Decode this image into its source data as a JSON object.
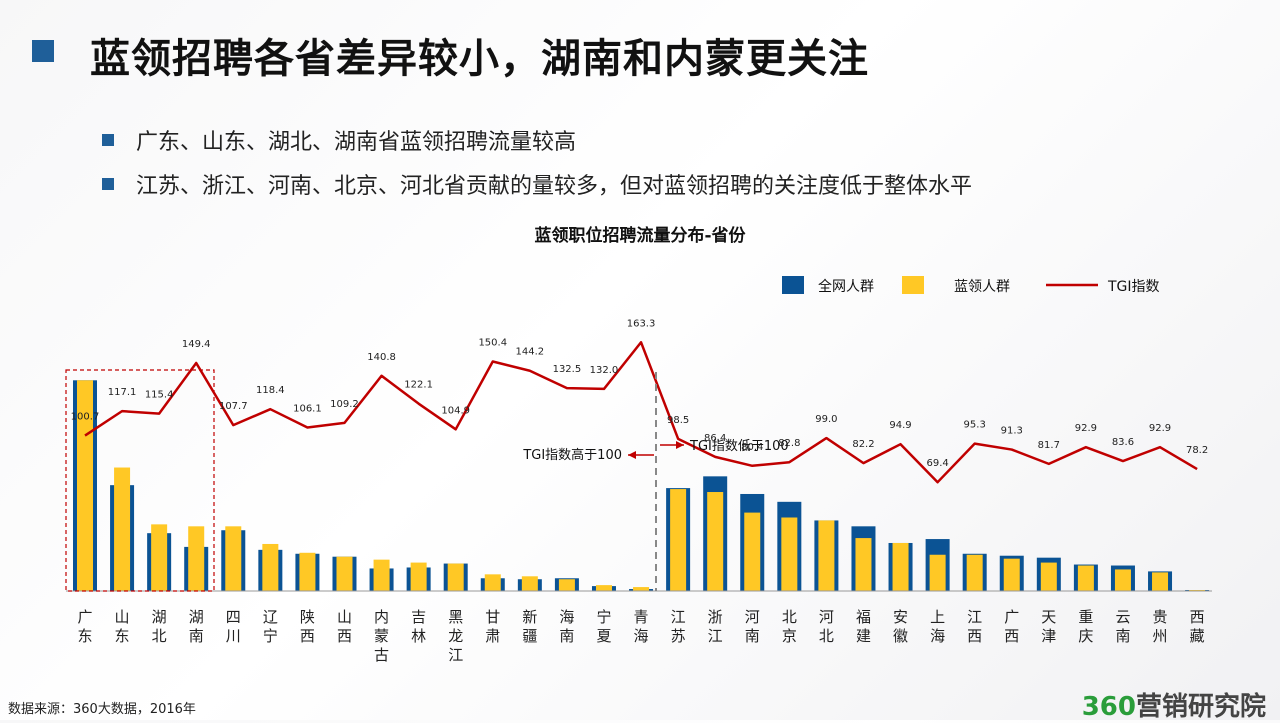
{
  "page": {
    "title": "蓝领招聘各省差异较小，湖南和内蒙更关注",
    "bullets": [
      "广东、山东、湖北、湖南省蓝领招聘流量较高",
      "江苏、浙江、河南、北京、河北省贡献的量较多，但对蓝领招聘的关注度低于整体水平"
    ],
    "source": "数据来源：360大数据，2016年",
    "brand_num": "360",
    "brand_text": "营销研究院"
  },
  "colors": {
    "blue": "#0b5394",
    "yellow": "#ffc825",
    "red": "#c00000",
    "accent": "#1f5f99"
  },
  "chart_data": {
    "type": "bar",
    "title": "蓝领职位招聘流量分布-省份",
    "categories": [
      "广东",
      "山东",
      "湖北",
      "湖南",
      "四川",
      "辽宁",
      "陕西",
      "山西",
      "内蒙古",
      "吉林",
      "黑龙江",
      "甘肃",
      "新疆",
      "海南",
      "宁夏",
      "青海",
      "江苏",
      "浙江",
      "河南",
      "北京",
      "河北",
      "福建",
      "安徽",
      "上海",
      "江西",
      "广西",
      "天津",
      "重庆",
      "云南",
      "贵州",
      "西藏"
    ],
    "series": [
      {
        "name": "全网人群",
        "values": [
          215,
          108,
          59,
          45,
          62,
          42,
          38,
          35,
          23,
          24,
          28,
          13,
          12,
          13,
          5,
          2,
          105,
          117,
          99,
          91,
          72,
          66,
          49,
          53,
          38,
          36,
          34,
          27,
          26,
          20,
          1
        ]
      },
      {
        "name": "蓝领人群",
        "values": [
          215,
          126,
          68,
          66,
          66,
          48,
          39,
          35,
          32,
          29,
          28,
          17,
          15,
          12,
          6,
          4,
          104,
          101,
          80,
          75,
          72,
          54,
          49,
          37,
          37,
          33,
          29,
          26,
          22,
          19,
          1
        ]
      },
      {
        "name": "TGI指数",
        "values": [
          100.7,
          117.1,
          115.4,
          149.4,
          107.7,
          118.4,
          106.1,
          109.2,
          140.8,
          122.1,
          104.9,
          150.4,
          144.2,
          132.5,
          132.0,
          163.3,
          98.5,
          86.4,
          80.4,
          82.8,
          99.0,
          82.2,
          94.9,
          69.4,
          95.3,
          91.3,
          81.7,
          92.9,
          83.6,
          92.9,
          78.2
        ]
      }
    ],
    "tgi_labels": [
      "100.7",
      "117.1",
      "115.4",
      "149.4",
      "107.7",
      "118.4",
      "106.1",
      "109.2",
      "140.8",
      "122.1",
      "104.9",
      "150.4",
      "144.2",
      "132.5",
      "132.0",
      "163.3",
      "98.5",
      "86.4",
      "80.4",
      "82.8",
      "99.0",
      "82.2",
      "94.9",
      "69.4",
      "95.3",
      "91.3",
      "81.7",
      "92.9",
      "83.6",
      "92.9",
      "78.2"
    ],
    "legend": {
      "placement": "top-right",
      "items": [
        "全网人群",
        "蓝领人群",
        "TGI指数"
      ]
    },
    "annotations": {
      "left": "TGI指数高于100",
      "right": "TGI指数低于100"
    },
    "grid": false
  }
}
